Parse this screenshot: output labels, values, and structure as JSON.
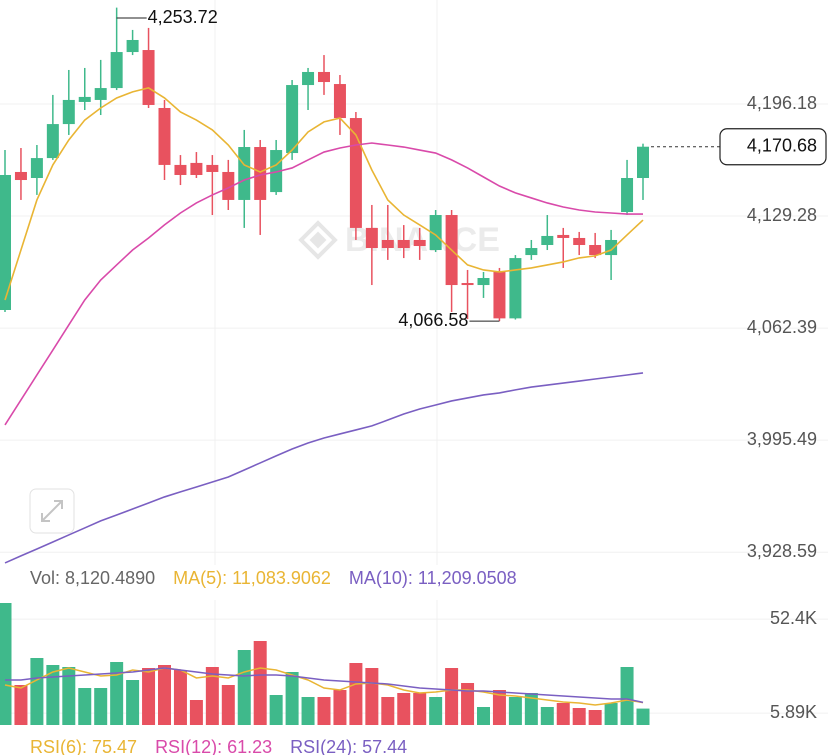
{
  "watermark": "BINANCE",
  "chart_data": [
    {
      "type": "candlestick",
      "up_color": "#3fb98b",
      "down_color": "#e8525f",
      "open": [
        4073.2,
        4155.6,
        4152.0,
        4163.9,
        4184.2,
        4197.4,
        4198.6,
        4205.7,
        4227.2,
        4228.4,
        4193.8,
        4159.8,
        4161.0,
        4159.8,
        4155.6,
        4138.9,
        4170.5,
        4143.6,
        4166.9,
        4207.5,
        4215.3,
        4208.1,
        4187.8,
        4122.2,
        4115.0,
        4115.0,
        4115.0,
        4109.0,
        4129.9,
        4089.3,
        4088.1,
        4095.9,
        4068.2,
        4106.0,
        4112.0,
        4118.0,
        4116.2,
        4112.0,
        4106.0,
        4131.7,
        4152.0
      ],
      "high": [
        4168.7,
        4169.9,
        4171.7,
        4201.6,
        4216.5,
        4217.7,
        4222.5,
        4253.72,
        4240.4,
        4241.6,
        4198.6,
        4165.7,
        4167.5,
        4165.7,
        4162.8,
        4180.7,
        4174.7,
        4174.7,
        4210.5,
        4217.7,
        4225.4,
        4213.5,
        4191.4,
        4135.9,
        4135.9,
        4123.9,
        4122.2,
        4132.9,
        4132.9,
        4097.1,
        4095.9,
        4098.3,
        4106.0,
        4115.0,
        4129.9,
        4122.2,
        4119.8,
        4119.2,
        4121.0,
        4162.8,
        4172.5
      ],
      "low": [
        4072.0,
        4138.9,
        4141.9,
        4162.8,
        4177.7,
        4192.6,
        4189.6,
        4204.5,
        4225.4,
        4193.8,
        4150.8,
        4147.8,
        4152.0,
        4129.9,
        4132.9,
        4122.2,
        4118.0,
        4141.9,
        4162.8,
        4192.6,
        4201.6,
        4177.7,
        4115.0,
        4088.1,
        4103.1,
        4104.2,
        4103.1,
        4107.8,
        4072.0,
        4067.8,
        4080.4,
        4066.58,
        4067.5,
        4103.1,
        4109.0,
        4098.3,
        4106.0,
        4104.2,
        4091.1,
        4129.9,
        4138.9
      ],
      "close": [
        4153.8,
        4150.8,
        4163.9,
        4184.2,
        4198.6,
        4200.4,
        4205.7,
        4227.2,
        4234.4,
        4195.6,
        4159.8,
        4153.8,
        4153.8,
        4155.6,
        4138.9,
        4170.5,
        4138.9,
        4168.7,
        4207.5,
        4215.3,
        4209.3,
        4187.8,
        4122.2,
        4110.2,
        4110.2,
        4110.2,
        4111.4,
        4129.9,
        4088.1,
        4088.1,
        4092.3,
        4068.2,
        4104.2,
        4110.2,
        4117.4,
        4116.2,
        4112.0,
        4106.0,
        4115.0,
        4152.0,
        4170.68
      ],
      "series": [
        {
          "color": "#e9b534",
          "values": [
            4079.2,
            4109.0,
            4138.9,
            4159.8,
            4174.7,
            4186.6,
            4193.8,
            4199.8,
            4203.4,
            4205.8,
            4199.8,
            4191.4,
            4186.6,
            4180.7,
            4171.7,
            4159.8,
            4155.6,
            4159.8,
            4168.7,
            4179.5,
            4185.5,
            4187.8,
            4177.7,
            4156.8,
            4138.9,
            4129.9,
            4124.0,
            4118.0,
            4109.0,
            4100.1,
            4097.1,
            4095.9,
            4097.1,
            4098.3,
            4100.1,
            4101.9,
            4104.3,
            4105.5,
            4109.0,
            4118.0,
            4126.9
          ]
        },
        {
          "color": "#d94aaa",
          "values": [
            4004.6,
            4019.5,
            4034.4,
            4049.3,
            4064.3,
            4079.2,
            4091.1,
            4100.1,
            4109.0,
            4116.2,
            4124.0,
            4131.1,
            4137.1,
            4141.9,
            4146.1,
            4150.8,
            4153.8,
            4155.6,
            4158.0,
            4162.8,
            4167.5,
            4169.9,
            4171.7,
            4172.9,
            4171.7,
            4170.5,
            4168.7,
            4166.9,
            4162.8,
            4158.0,
            4152.6,
            4147.2,
            4143.1,
            4140.1,
            4137.1,
            4134.7,
            4132.9,
            4131.7,
            4131.1,
            4130.5,
            4130.5
          ]
        },
        {
          "color": "#7a5fc2",
          "values": [
            3922.2,
            3926.4,
            3930.5,
            3934.7,
            3938.9,
            3943.1,
            3947.3,
            3950.8,
            3954.4,
            3958.0,
            3961.6,
            3964.6,
            3967.5,
            3970.5,
            3973.5,
            3977.7,
            3981.9,
            3986.1,
            3990.2,
            3993.8,
            3996.8,
            3999.2,
            4001.6,
            4004.0,
            4007.5,
            4011.1,
            4014.1,
            4016.5,
            4018.9,
            4020.7,
            4022.5,
            4023.7,
            4025.5,
            4027.2,
            4028.4,
            4029.6,
            4030.8,
            4032.0,
            4033.2,
            4034.4,
            4035.6
          ]
        }
      ],
      "ylim": [
        3920.96,
        4258.27
      ],
      "yticks": [
        {
          "value": 4196.18,
          "label": "4,196.18"
        },
        {
          "value": 4129.28,
          "label": "4,129.28"
        },
        {
          "value": 4062.39,
          "label": "4,062.39"
        },
        {
          "value": 3995.49,
          "label": "3,995.49"
        },
        {
          "value": 3928.59,
          "label": "3,928.59"
        }
      ],
      "grid": true,
      "high_label": "4,253.72",
      "low_label": "4,066.58",
      "last_price_label": "4,170.68"
    },
    {
      "type": "volume",
      "legend_title": "Vol: 8,120.4890",
      "values": [
        60366,
        19792,
        33152,
        29688,
        28698,
        18308,
        18308,
        31172,
        22266,
        28204,
        29688,
        27214,
        12370,
        28698,
        19792,
        37110,
        41563,
        14844,
        26224,
        13854,
        13854,
        17318,
        30678,
        28204,
        13854,
        15834,
        15834,
        13854,
        28204,
        20782,
        8906,
        17318,
        13854,
        15834,
        8906,
        10886,
        8412,
        7422,
        10886,
        28698,
        8120.489
      ],
      "series": [
        {
          "name": "MA(5): 11,083.9062",
          "color": "#e9b534",
          "values": [
            19800,
            18315,
            22275,
            26235,
            28215,
            26235,
            24255,
            24750,
            27225,
            26235,
            28215,
            27225,
            23265,
            24255,
            23265,
            26235,
            28215,
            27225,
            24750,
            22275,
            18315,
            17325,
            20295,
            20790,
            19800,
            17325,
            15840,
            16335,
            17325,
            17325,
            16335,
            14850,
            14355,
            13365,
            12375,
            11385,
            10890,
            9900,
            10890,
            12375,
            11083.9062
          ]
        },
        {
          "name": "MA(10): 11,209.0508",
          "color": "#7a5fc2",
          "values": [
            22275,
            22275,
            23265,
            23760,
            24255,
            24750,
            25245,
            25740,
            26235,
            27225,
            28215,
            27225,
            26235,
            25245,
            24750,
            24255,
            24750,
            24750,
            24255,
            23265,
            22275,
            21780,
            21285,
            20790,
            20295,
            19305,
            18315,
            17820,
            17325,
            16830,
            16830,
            16335,
            15840,
            15345,
            14850,
            14355,
            13860,
            13365,
            12870,
            12870,
            11209.0508
          ]
        }
      ],
      "ylim": [
        0,
        61850
      ],
      "yticks": [
        {
          "value": 52400,
          "label": "52.4K"
        },
        {
          "value": 5890,
          "label": "5.89K"
        }
      ]
    },
    {
      "type": "legend",
      "items": [
        {
          "name": "RSI(6): 75.47",
          "color": "#e9b534"
        },
        {
          "name": "RSI(12): 61.23",
          "color": "#d94aaa"
        },
        {
          "name": "RSI(24): 57.44",
          "color": "#7a5fc2"
        }
      ]
    }
  ]
}
